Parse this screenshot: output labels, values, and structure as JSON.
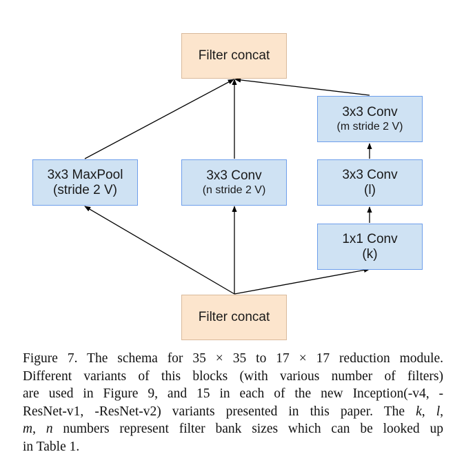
{
  "nodes": {
    "top_concat": {
      "line1": "Filter concat"
    },
    "maxpool": {
      "line1": "3x3 MaxPool",
      "line2": "(stride 2 V)"
    },
    "conv_n": {
      "line1": "3x3 Conv",
      "line2": "(n stride 2 V)"
    },
    "conv_m": {
      "line1": "3x3 Conv",
      "line2": "(m stride 2 V)"
    },
    "conv_l": {
      "line1": "3x3 Conv",
      "line2": "(l)"
    },
    "conv_k": {
      "line1": "1x1 Conv",
      "line2": "(k)"
    },
    "bottom_concat": {
      "line1": "Filter concat"
    }
  },
  "caption": {
    "lines": [
      [
        "Figure 7. The schema for ",
        "35 × 35",
        " to ",
        "17 × 17",
        " reduction module."
      ],
      [
        "Different variants of this blocks (with various number of filters)"
      ],
      [
        "are used in Figure 9, and 15 in each of the new Inception(-v4, -"
      ],
      [
        "ResNet-v1, -ResNet-v2) variants presented in this paper. The ",
        "k",
        ", ",
        "l",
        ","
      ],
      [
        "m",
        ", ",
        "n",
        " numbers represent filter bank sizes which can be looked up"
      ],
      [
        "in Table 1."
      ]
    ]
  },
  "colors": {
    "concat_fill": "#fce5cd",
    "conv_fill": "#cfe2f3",
    "conv_border": "#6d9eeb",
    "arrow": "#000000"
  }
}
